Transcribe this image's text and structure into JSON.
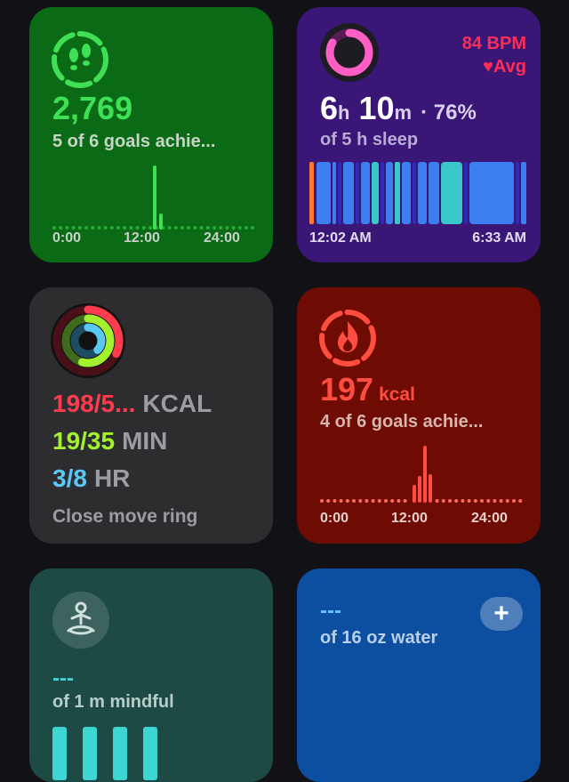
{
  "steps": {
    "value": "2,769",
    "goals": "5 of 6 goals achie...",
    "axis": [
      "0:00",
      "12:00",
      "24:00"
    ],
    "icon": "footprints-icon",
    "color": "#3fe055"
  },
  "sleep": {
    "bpm": "84 BPM",
    "avg": "Avg",
    "hours": "6",
    "h": "h",
    "minutes": "10",
    "m": "m",
    "percent": "· 76%",
    "sub": "of 5 h sleep",
    "axis": [
      "12:02 AM",
      "6:33 AM"
    ],
    "icon": "sleep-ring-icon",
    "heart_icon": "heart-icon"
  },
  "rings": {
    "move": {
      "value": "198/5...",
      "unit": "KCAL",
      "color": "#ff3b4e"
    },
    "exercise": {
      "value": "19/35",
      "unit": "MIN",
      "color": "#a3f02f"
    },
    "stand": {
      "value": "3/8",
      "unit": "HR",
      "color": "#5ac8f5"
    },
    "message": "Close move ring",
    "icon": "activity-rings-icon"
  },
  "energy": {
    "value": "197",
    "unit": "kcal",
    "goals": "4 of 6 goals achie...",
    "axis": [
      "0:00",
      "12:00",
      "24:00"
    ],
    "icon": "flame-icon",
    "color": "#ff4e40"
  },
  "mindful": {
    "value": "---",
    "sub": "of 1 m mindful",
    "icon": "meditation-icon"
  },
  "water": {
    "value": "---",
    "sub": "of 16 oz water",
    "add": "+",
    "icon": "plus-icon"
  }
}
